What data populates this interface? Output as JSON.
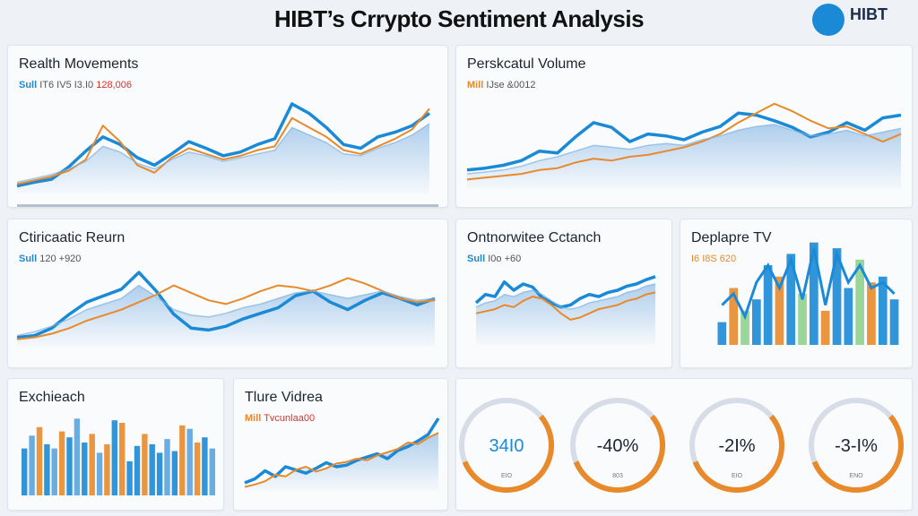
{
  "title": "HIBT’s Crrypto Sentiment Analysis",
  "logo": {
    "text": "HIBT",
    "sub": ""
  },
  "panels": {
    "p1": {
      "title": "Realth Movements",
      "sub_a": "Sull",
      "sub_b": "IT6 IV5 I3.I0",
      "sub_c": "128,006"
    },
    "p2": {
      "title": "Perskcatul Volume",
      "sub_a": "Mill",
      "sub_b": "IJse &0012",
      "sub_c": ""
    },
    "p3": {
      "title": "Ctiricaatic Reurn",
      "sub_a": "Sull",
      "sub_b": "120 +920",
      "sub_c": ""
    },
    "p4": {
      "title": "Ontnorwitee Cctanch",
      "sub_a": "Sull",
      "sub_b": "I0o +60",
      "sub_c": ""
    },
    "p5": {
      "title": "Deplapre TV",
      "sub_a": "",
      "sub_b": "",
      "sub_c": "I6 I8S 620"
    },
    "p6": {
      "title": "Exchieach",
      "sub_a": "",
      "sub_b": "",
      "sub_c": ""
    },
    "p7": {
      "title": "Tlure Vidrea",
      "sub_a": "Mill",
      "sub_b": "",
      "sub_c": "Tvcunlaa00"
    },
    "p8": {
      "gauges": [
        {
          "value": "34I0",
          "sub": "EIO"
        },
        {
          "value": "-40%",
          "sub": "803"
        },
        {
          "value": "-2I%",
          "sub": "EIO"
        },
        {
          "value": "-3-I%",
          "sub": "ENO"
        }
      ]
    }
  },
  "colors": {
    "blue": "#1b8ad6",
    "orange": "#e8892a",
    "light_blue": "#9cc3e8",
    "green": "#8fd18f",
    "red": "#d9342b"
  },
  "chart_data": [
    {
      "type": "line",
      "title": "Realth Movements",
      "x": [
        0,
        1,
        2,
        3,
        4,
        5,
        6,
        7,
        8,
        9,
        10,
        11,
        12,
        13,
        14,
        15,
        16,
        17,
        18,
        19,
        20,
        21,
        22,
        23,
        24
      ],
      "series": [
        {
          "values": [
            8,
            12,
            15,
            28,
            45,
            60,
            52,
            38,
            30,
            42,
            55,
            48,
            40,
            44,
            52,
            58,
            95,
            85,
            70,
            52,
            48,
            60,
            65,
            72,
            85
          ]
        },
        {
          "values": [
            10,
            14,
            18,
            24,
            36,
            72,
            55,
            30,
            22,
            38,
            48,
            42,
            36,
            40,
            46,
            50,
            80,
            70,
            60,
            46,
            42,
            50,
            58,
            68,
            90
          ]
        },
        {
          "values": [
            12,
            16,
            20,
            26,
            34,
            50,
            44,
            32,
            26,
            36,
            44,
            40,
            34,
            38,
            42,
            46,
            70,
            62,
            54,
            42,
            40,
            48,
            54,
            62,
            74
          ]
        }
      ]
    },
    {
      "type": "line",
      "title": "Perskcatul Volume",
      "x": [
        0,
        1,
        2,
        3,
        4,
        5,
        6,
        7,
        8,
        9,
        10,
        11,
        12,
        13,
        14,
        15,
        16,
        17,
        18,
        19,
        20,
        21,
        22,
        23,
        24
      ],
      "series": [
        {
          "values": [
            20,
            22,
            25,
            30,
            40,
            38,
            55,
            70,
            65,
            50,
            58,
            56,
            52,
            60,
            66,
            80,
            78,
            72,
            65,
            55,
            60,
            70,
            62,
            75,
            78
          ]
        },
        {
          "values": [
            10,
            12,
            14,
            16,
            20,
            22,
            28,
            32,
            30,
            34,
            36,
            40,
            44,
            50,
            58,
            70,
            80,
            90,
            82,
            72,
            64,
            66,
            58,
            50,
            58
          ]
        },
        {
          "values": [
            16,
            18,
            20,
            24,
            30,
            34,
            40,
            46,
            44,
            42,
            46,
            48,
            46,
            52,
            56,
            62,
            66,
            68,
            62,
            56,
            58,
            62,
            56,
            60,
            64
          ]
        }
      ]
    },
    {
      "type": "line",
      "title": "Ctiricaatic Reurn",
      "x": [
        0,
        1,
        2,
        3,
        4,
        5,
        6,
        7,
        8,
        9,
        10,
        11,
        12,
        13,
        14,
        15,
        16,
        17,
        18,
        19,
        20,
        21,
        22,
        23,
        24
      ],
      "series": [
        {
          "values": [
            10,
            12,
            20,
            35,
            48,
            55,
            62,
            80,
            60,
            35,
            20,
            18,
            22,
            30,
            36,
            42,
            55,
            60,
            48,
            40,
            50,
            58,
            52,
            45,
            52
          ]
        },
        {
          "values": [
            8,
            10,
            14,
            20,
            28,
            34,
            40,
            48,
            56,
            66,
            58,
            50,
            46,
            52,
            60,
            66,
            64,
            60,
            66,
            74,
            68,
            60,
            52,
            48,
            50
          ]
        },
        {
          "values": [
            12,
            16,
            22,
            30,
            40,
            46,
            52,
            66,
            54,
            40,
            34,
            32,
            36,
            42,
            46,
            52,
            58,
            60,
            56,
            52,
            56,
            60,
            54,
            50,
            52
          ]
        }
      ]
    },
    {
      "type": "line",
      "title": "Ontnorwitee Cctanch",
      "x": [
        0,
        1,
        2,
        3,
        4,
        5,
        6,
        7,
        8,
        9,
        10,
        11,
        12,
        13,
        14,
        15,
        16,
        17,
        18,
        19
      ],
      "series": [
        {
          "values": [
            40,
            48,
            46,
            60,
            52,
            58,
            55,
            45,
            40,
            36,
            38,
            44,
            48,
            46,
            50,
            52,
            56,
            58,
            62,
            65
          ]
        },
        {
          "values": [
            30,
            32,
            34,
            38,
            36,
            42,
            46,
            44,
            38,
            30,
            24,
            26,
            30,
            34,
            36,
            38,
            42,
            44,
            48,
            50
          ]
        },
        {
          "values": [
            36,
            40,
            42,
            48,
            46,
            50,
            52,
            48,
            42,
            36,
            34,
            36,
            40,
            42,
            44,
            46,
            50,
            52,
            56,
            58
          ]
        }
      ]
    },
    {
      "type": "bar",
      "title": "Deplapre TV",
      "categories": [
        "1",
        "2",
        "3",
        "4",
        "5",
        "6",
        "7",
        "8",
        "9",
        "10",
        "11",
        "12",
        "13",
        "14",
        "15",
        "16"
      ],
      "values": [
        20,
        50,
        30,
        40,
        70,
        60,
        80,
        45,
        90,
        30,
        85,
        50,
        75,
        55,
        60,
        40
      ],
      "line": [
        35,
        45,
        25,
        55,
        70,
        50,
        75,
        40,
        85,
        35,
        80,
        55,
        70,
        50,
        55,
        45
      ]
    },
    {
      "type": "bar",
      "title": "Exchieach",
      "categories": [
        "1",
        "2",
        "3",
        "4",
        "5",
        "6",
        "7",
        "8",
        "9",
        "10",
        "11",
        "12",
        "13",
        "14",
        "15",
        "16",
        "17",
        "18",
        "19",
        "20",
        "21",
        "22",
        "23",
        "24",
        "25",
        "26"
      ],
      "values": [
        55,
        70,
        80,
        60,
        55,
        75,
        68,
        90,
        62,
        72,
        50,
        60,
        88,
        85,
        40,
        58,
        72,
        60,
        50,
        66,
        52,
        82,
        78,
        62,
        68,
        55
      ],
      "accent": [
        0,
        0,
        1,
        0,
        0,
        1,
        0,
        0,
        0,
        1,
        0,
        1,
        0,
        1,
        0,
        0,
        1,
        0,
        0,
        0,
        0,
        1,
        0,
        1,
        0,
        0
      ]
    },
    {
      "type": "line",
      "title": "Tlure Vidrea",
      "x": [
        0,
        1,
        2,
        3,
        4,
        5,
        6,
        7,
        8,
        9,
        10,
        11,
        12,
        13,
        14,
        15,
        16,
        17,
        18,
        19
      ],
      "series": [
        {
          "values": [
            10,
            15,
            25,
            18,
            30,
            26,
            22,
            28,
            35,
            30,
            32,
            38,
            42,
            46,
            40,
            50,
            55,
            62,
            70,
            90
          ]
        },
        {
          "values": [
            5,
            8,
            12,
            20,
            18,
            26,
            30,
            24,
            28,
            34,
            36,
            40,
            38,
            44,
            48,
            52,
            60,
            58,
            66,
            72
          ]
        }
      ]
    }
  ]
}
